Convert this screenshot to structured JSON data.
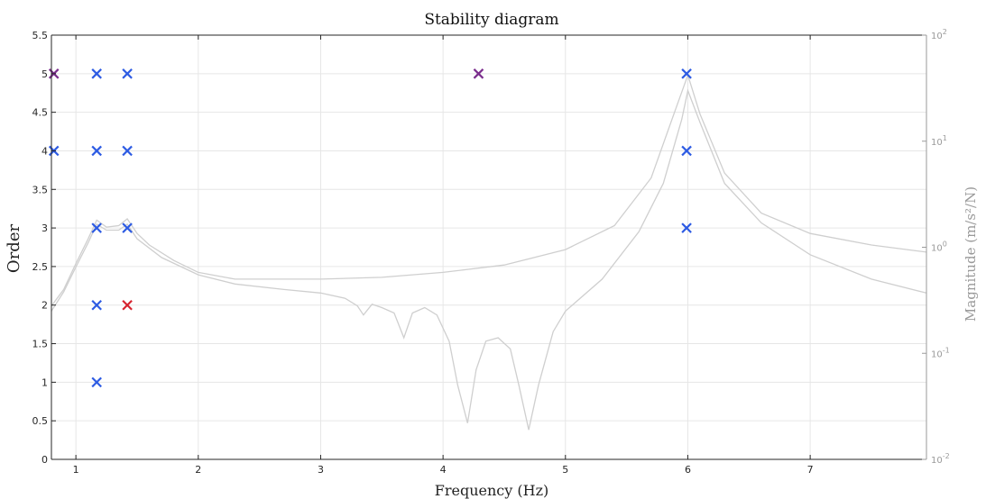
{
  "chart_data": {
    "type": "scatter",
    "title": "Stability diagram",
    "xlabel": "Frequency (Hz)",
    "ylabel": "Order",
    "y2label": "Magnitude (m/s²/N)",
    "xlim": [
      0.8,
      7.95
    ],
    "ylim": [
      0,
      5.5
    ],
    "y2lim": [
      0.01,
      100
    ],
    "y2scale": "log",
    "grid": true,
    "x_ticks": [
      "1",
      "2",
      "3",
      "4",
      "5",
      "6",
      "7"
    ],
    "x_tick_values": [
      1,
      2,
      3,
      4,
      5,
      6,
      7
    ],
    "y_ticks": [
      "0",
      "0.5",
      "1",
      "1.5",
      "2",
      "2.5",
      "3",
      "3.5",
      "4",
      "4.5",
      "5",
      "5.5"
    ],
    "y_tick_values": [
      0,
      0.5,
      1,
      1.5,
      2,
      2.5,
      3,
      3.5,
      4,
      4.5,
      5,
      5.5
    ],
    "y2_ticks": [
      {
        "value": 0.01,
        "base": "10",
        "exp": "-2"
      },
      {
        "value": 0.1,
        "base": "10",
        "exp": "-1"
      },
      {
        "value": 1,
        "base": "10",
        "exp": "0"
      },
      {
        "value": 10,
        "base": "10",
        "exp": "1"
      },
      {
        "value": 100,
        "base": "10",
        "exp": "2"
      }
    ],
    "colors": {
      "blue": "#2d5be3",
      "red": "#d6232e",
      "purple": "#7a2d8c",
      "frf": "#cfcfcf",
      "grid": "#e6e6e6"
    },
    "markers": [
      {
        "x": 0.82,
        "y": 5,
        "color": "purple"
      },
      {
        "x": 1.17,
        "y": 5,
        "color": "blue"
      },
      {
        "x": 1.42,
        "y": 5,
        "color": "blue"
      },
      {
        "x": 4.29,
        "y": 5,
        "color": "purple"
      },
      {
        "x": 5.99,
        "y": 5,
        "color": "blue"
      },
      {
        "x": 0.82,
        "y": 4,
        "color": "blue"
      },
      {
        "x": 1.17,
        "y": 4,
        "color": "blue"
      },
      {
        "x": 1.42,
        "y": 4,
        "color": "blue"
      },
      {
        "x": 5.99,
        "y": 4,
        "color": "blue"
      },
      {
        "x": 1.17,
        "y": 3,
        "color": "blue"
      },
      {
        "x": 1.42,
        "y": 3,
        "color": "blue"
      },
      {
        "x": 5.99,
        "y": 3,
        "color": "blue"
      },
      {
        "x": 1.17,
        "y": 2,
        "color": "blue"
      },
      {
        "x": 1.42,
        "y": 2,
        "color": "red"
      },
      {
        "x": 1.17,
        "y": 1,
        "color": "blue"
      }
    ],
    "frf_series": [
      {
        "points": [
          [
            0.8,
            0.28
          ],
          [
            0.9,
            0.4
          ],
          [
            1.0,
            0.7
          ],
          [
            1.1,
            1.2
          ],
          [
            1.17,
            1.8
          ],
          [
            1.25,
            1.55
          ],
          [
            1.35,
            1.6
          ],
          [
            1.42,
            1.85
          ],
          [
            1.5,
            1.35
          ],
          [
            1.6,
            1.05
          ],
          [
            1.8,
            0.75
          ],
          [
            2.0,
            0.58
          ],
          [
            2.3,
            0.5
          ],
          [
            2.7,
            0.5
          ],
          [
            3.0,
            0.5
          ],
          [
            3.5,
            0.52
          ],
          [
            4.0,
            0.58
          ],
          [
            4.5,
            0.68
          ],
          [
            5.0,
            0.95
          ],
          [
            5.4,
            1.6
          ],
          [
            5.7,
            4.5
          ],
          [
            5.9,
            20
          ],
          [
            6.0,
            42
          ],
          [
            6.1,
            18
          ],
          [
            6.3,
            5
          ],
          [
            6.6,
            2.1
          ],
          [
            7.0,
            1.35
          ],
          [
            7.5,
            1.05
          ],
          [
            7.95,
            0.9
          ]
        ]
      },
      {
        "points": [
          [
            0.8,
            0.25
          ],
          [
            0.9,
            0.38
          ],
          [
            1.0,
            0.65
          ],
          [
            1.1,
            1.1
          ],
          [
            1.17,
            1.65
          ],
          [
            1.25,
            1.45
          ],
          [
            1.35,
            1.45
          ],
          [
            1.42,
            1.65
          ],
          [
            1.5,
            1.2
          ],
          [
            1.7,
            0.8
          ],
          [
            2.0,
            0.55
          ],
          [
            2.3,
            0.45
          ],
          [
            2.7,
            0.4
          ],
          [
            3.0,
            0.37
          ],
          [
            3.2,
            0.33
          ],
          [
            3.3,
            0.28
          ],
          [
            3.35,
            0.23
          ],
          [
            3.42,
            0.29
          ],
          [
            3.5,
            0.27
          ],
          [
            3.6,
            0.24
          ],
          [
            3.68,
            0.14
          ],
          [
            3.75,
            0.24
          ],
          [
            3.85,
            0.27
          ],
          [
            3.95,
            0.23
          ],
          [
            4.05,
            0.13
          ],
          [
            4.12,
            0.05
          ],
          [
            4.2,
            0.022
          ],
          [
            4.27,
            0.07
          ],
          [
            4.35,
            0.13
          ],
          [
            4.45,
            0.14
          ],
          [
            4.55,
            0.11
          ],
          [
            4.62,
            0.05
          ],
          [
            4.7,
            0.019
          ],
          [
            4.78,
            0.05
          ],
          [
            4.9,
            0.16
          ],
          [
            5.0,
            0.25
          ],
          [
            5.3,
            0.5
          ],
          [
            5.6,
            1.4
          ],
          [
            5.8,
            4
          ],
          [
            5.95,
            16
          ],
          [
            6.0,
            30
          ],
          [
            6.1,
            15
          ],
          [
            6.3,
            4
          ],
          [
            6.6,
            1.7
          ],
          [
            7.0,
            0.85
          ],
          [
            7.5,
            0.5
          ],
          [
            7.95,
            0.37
          ]
        ]
      }
    ]
  }
}
